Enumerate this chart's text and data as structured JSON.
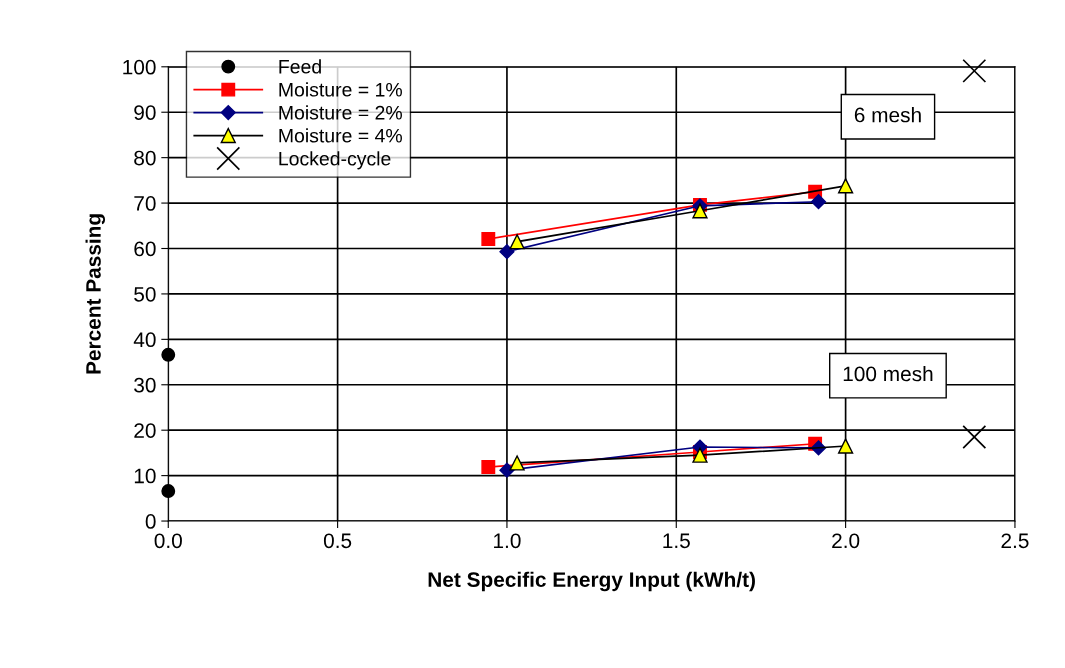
{
  "chart_data": {
    "type": "line",
    "xlabel": "Net Specific Energy Input (kWh/t)",
    "ylabel": "Percent Passing",
    "xlim": [
      0,
      2.5
    ],
    "xticks": [
      {
        "value": 0,
        "label": "0.0"
      },
      {
        "value": 0.5,
        "label": "0.5"
      },
      {
        "value": 1,
        "label": "1.0"
      },
      {
        "value": 1.5,
        "label": "1.5"
      },
      {
        "value": 2,
        "label": "2.0"
      },
      {
        "value": 2.5,
        "label": "2.5"
      }
    ],
    "ylim": [
      0,
      100
    ],
    "yticks": [
      0,
      10,
      20,
      30,
      40,
      50,
      60,
      70,
      80,
      90,
      100
    ],
    "grid": true,
    "legend": "top left",
    "annotations": [
      "6 mesh",
      "100 mesh"
    ],
    "series": [
      {
        "name": "Feed",
        "type": "scatter",
        "marker": "circle",
        "color": "#000000",
        "x": [
          0,
          0
        ],
        "values": [
          36.6,
          6.6
        ]
      },
      {
        "name": "Moisture = 1%",
        "marker": "square",
        "color": "#ff0000",
        "x": [
          0.945,
          1.57,
          1.91,
          null,
          0.945,
          1.57,
          1.91
        ],
        "values": [
          62.1,
          69.6,
          72.5,
          null,
          11.9,
          15.2,
          17.0
        ]
      },
      {
        "name": "Moisture = 2%",
        "marker": "diamond",
        "color": "#000080",
        "x": [
          1.0,
          1.57,
          1.92,
          null,
          1.0,
          1.57,
          1.92
        ],
        "values": [
          59.3,
          69.4,
          70.3,
          null,
          11.2,
          16.3,
          16.1
        ]
      },
      {
        "name": "Moisture = 4%",
        "marker": "triangle",
        "color": "#ffff00",
        "x": [
          1.03,
          1.57,
          2.0,
          null,
          1.03,
          1.57,
          2.0
        ],
        "values": [
          61.5,
          68.3,
          73.8,
          null,
          12.8,
          14.5,
          16.5
        ]
      },
      {
        "name": "Locked-cycle",
        "type": "scatter",
        "marker": "cross",
        "color": "#000000",
        "x": [
          2.38,
          2.38
        ],
        "values": [
          99.1,
          18.5
        ]
      }
    ]
  }
}
